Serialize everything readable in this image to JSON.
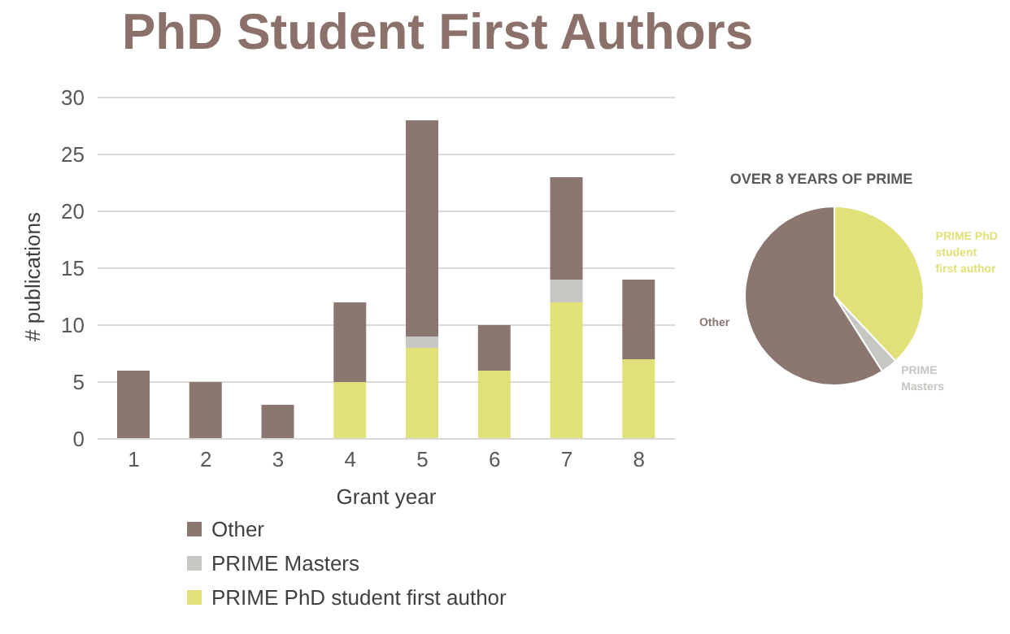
{
  "chart_data": [
    {
      "type": "bar",
      "title": "PhD Student First Authors",
      "xlabel": "Grant year",
      "ylabel": "# publications",
      "categories": [
        "1",
        "2",
        "3",
        "4",
        "5",
        "6",
        "7",
        "8"
      ],
      "stacked": true,
      "series": [
        {
          "name": "PRIME PhD student first author",
          "color": "#e1e17a",
          "values": [
            0,
            0,
            0,
            5,
            8,
            6,
            12,
            7
          ]
        },
        {
          "name": "PRIME Masters",
          "color": "#c6c6c2",
          "values": [
            0,
            0,
            0,
            0,
            1,
            0,
            2,
            0
          ]
        },
        {
          "name": "Other",
          "color": "#8b7770",
          "values": [
            6,
            5,
            3,
            7,
            19,
            4,
            9,
            7
          ]
        }
      ],
      "ylim": [
        0,
        30
      ],
      "yticks": [
        0,
        5,
        10,
        15,
        20,
        25,
        30
      ],
      "grid": "y",
      "legend": "bottom"
    },
    {
      "type": "pie",
      "title": "OVER 8 YEARS OF PRIME",
      "categories": [
        "PRIME PhD student first author",
        "PRIME Masters",
        "Other"
      ],
      "values": [
        38,
        3,
        59
      ],
      "colors": [
        "#e1e17a",
        "#c6c6c2",
        "#8b7770"
      ]
    }
  ]
}
